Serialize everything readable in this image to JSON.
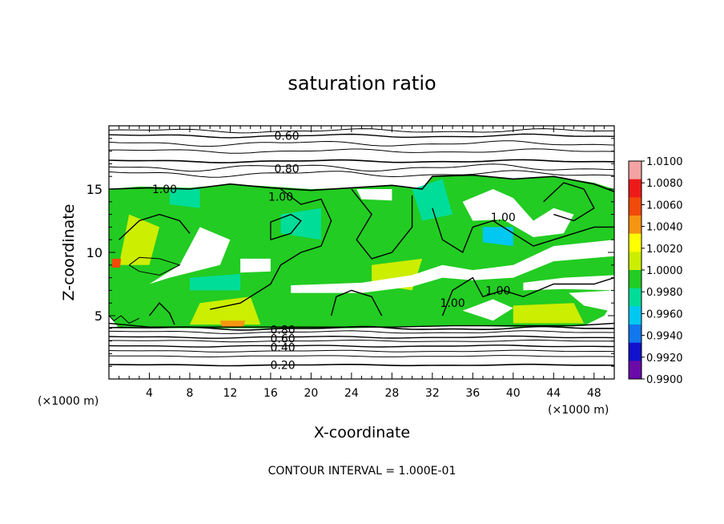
{
  "chart_data": {
    "type": "heatmap",
    "title": "saturation ratio",
    "xlabel": "X-coordinate",
    "ylabel": "Z-coordinate",
    "x_unit": "(×1000 m)",
    "y_unit": "(×1000 m)",
    "footer": "CONTOUR INTERVAL = 1.000E-01",
    "xlim": [
      0,
      50
    ],
    "ylim": [
      0,
      20
    ],
    "x_ticks": [
      "4",
      "8",
      "12",
      "16",
      "20",
      "24",
      "28",
      "32",
      "36",
      "40",
      "44",
      "48"
    ],
    "x_tick_values": [
      4,
      8,
      12,
      16,
      20,
      24,
      28,
      32,
      36,
      40,
      44,
      48
    ],
    "y_ticks": [
      "5",
      "10",
      "15"
    ],
    "y_tick_values": [
      5,
      10,
      15
    ],
    "colorbar": {
      "min": 0.99,
      "max": 1.01,
      "labels": [
        "1.0100",
        "1.0080",
        "1.0060",
        "1.0040",
        "1.0020",
        "1.0000",
        "0.9980",
        "0.9960",
        "0.9940",
        "0.9920",
        "0.9900"
      ],
      "colors": [
        "#f4a3a3",
        "#ee1a1a",
        "#f24a0a",
        "#f59512",
        "#ffff00",
        "#ccee00",
        "#22cc22",
        "#00dd99",
        "#00c8f0",
        "#1177ee",
        "#1111cc",
        "#6a0aa8"
      ]
    },
    "contour_labels": [
      {
        "text": "0.60",
        "x": 17.6,
        "z": 19.2
      },
      {
        "text": "0.80",
        "x": 17.6,
        "z": 16.6
      },
      {
        "text": "1.00",
        "x": 5.5,
        "z": 15.0
      },
      {
        "text": "1.00",
        "x": 17.0,
        "z": 14.4
      },
      {
        "text": "1.00",
        "x": 39.0,
        "z": 12.8
      },
      {
        "text": "1.00",
        "x": 38.5,
        "z": 7.0
      },
      {
        "text": "1.00",
        "x": 34.0,
        "z": 6.0
      },
      {
        "text": "0.80",
        "x": 17.2,
        "z": 3.9
      },
      {
        "text": "0.60",
        "x": 17.2,
        "z": 3.2
      },
      {
        "text": "0.40",
        "x": 17.2,
        "z": 2.5
      },
      {
        "text": "0.20",
        "x": 17.2,
        "z": 1.1
      }
    ]
  }
}
